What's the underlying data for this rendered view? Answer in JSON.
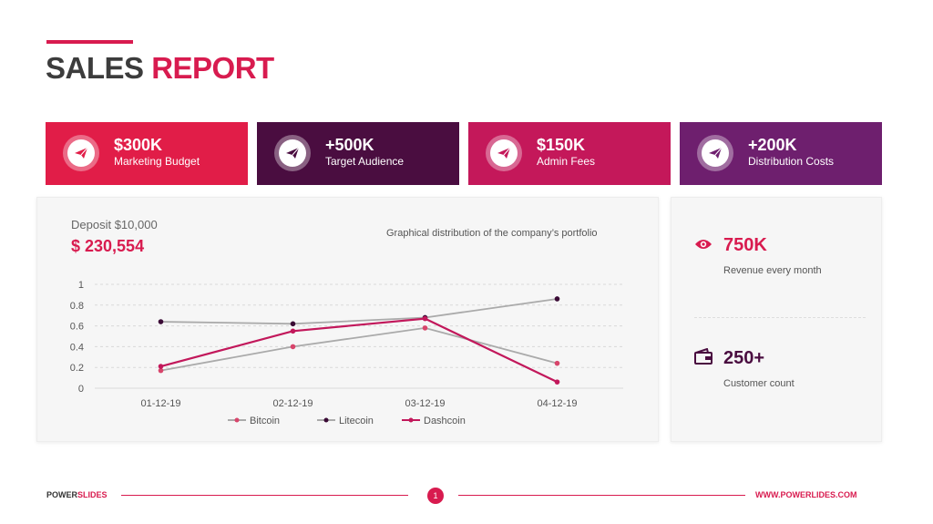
{
  "header": {
    "title_part1": "SALES",
    "title_part2": "REPORT"
  },
  "cards": [
    {
      "value": "$300K",
      "label": "Marketing Budget",
      "color": "#e11d48"
    },
    {
      "value": "+500K",
      "label": "Target Audience",
      "color": "#4a0d40"
    },
    {
      "value": "$150K",
      "label": "Admin Fees",
      "color": "#c4185a"
    },
    {
      "value": "+200K",
      "label": "Distribution Costs",
      "color": "#6e1f6e"
    }
  ],
  "card_icon": "paper-plane-icon",
  "chart_panel": {
    "deposit": "Deposit $10,000",
    "amount": "$ 230,554",
    "note": "Graphical distribution of the company’s portfolio"
  },
  "stats": [
    {
      "value": "750K",
      "label": "Revenue every month",
      "icon": "eye-icon",
      "color": "#d81b4f"
    },
    {
      "value": "250+",
      "label": "Customer count",
      "icon": "wallet-icon",
      "color": "#4a0d40"
    }
  ],
  "footer": {
    "brand_part1": "POWER",
    "brand_part2": "SLIDES",
    "page": "1",
    "url": "WWW.POWERLIDES.COM"
  },
  "chart_data": {
    "type": "line",
    "categories": [
      "01-12-19",
      "02-12-19",
      "03-12-19",
      "04-12-19"
    ],
    "ylim": [
      0,
      1
    ],
    "yticks": [
      "0",
      "0.2",
      "0.4",
      "0.6",
      "0.8",
      "1"
    ],
    "grid": true,
    "legend_position": "bottom",
    "series": [
      {
        "name": "Bitcoin",
        "values": [
          0.17,
          0.4,
          0.58,
          0.24
        ],
        "color": "#aaaaaa",
        "marker": "#d8456b"
      },
      {
        "name": "Litecoin",
        "values": [
          0.64,
          0.62,
          0.68,
          0.86
        ],
        "color": "#aaaaaa",
        "marker": "#3a0a35"
      },
      {
        "name": "Dashcoin",
        "values": [
          0.21,
          0.55,
          0.67,
          0.06
        ],
        "color": "#c2185b",
        "marker": "#c2185b"
      }
    ]
  }
}
